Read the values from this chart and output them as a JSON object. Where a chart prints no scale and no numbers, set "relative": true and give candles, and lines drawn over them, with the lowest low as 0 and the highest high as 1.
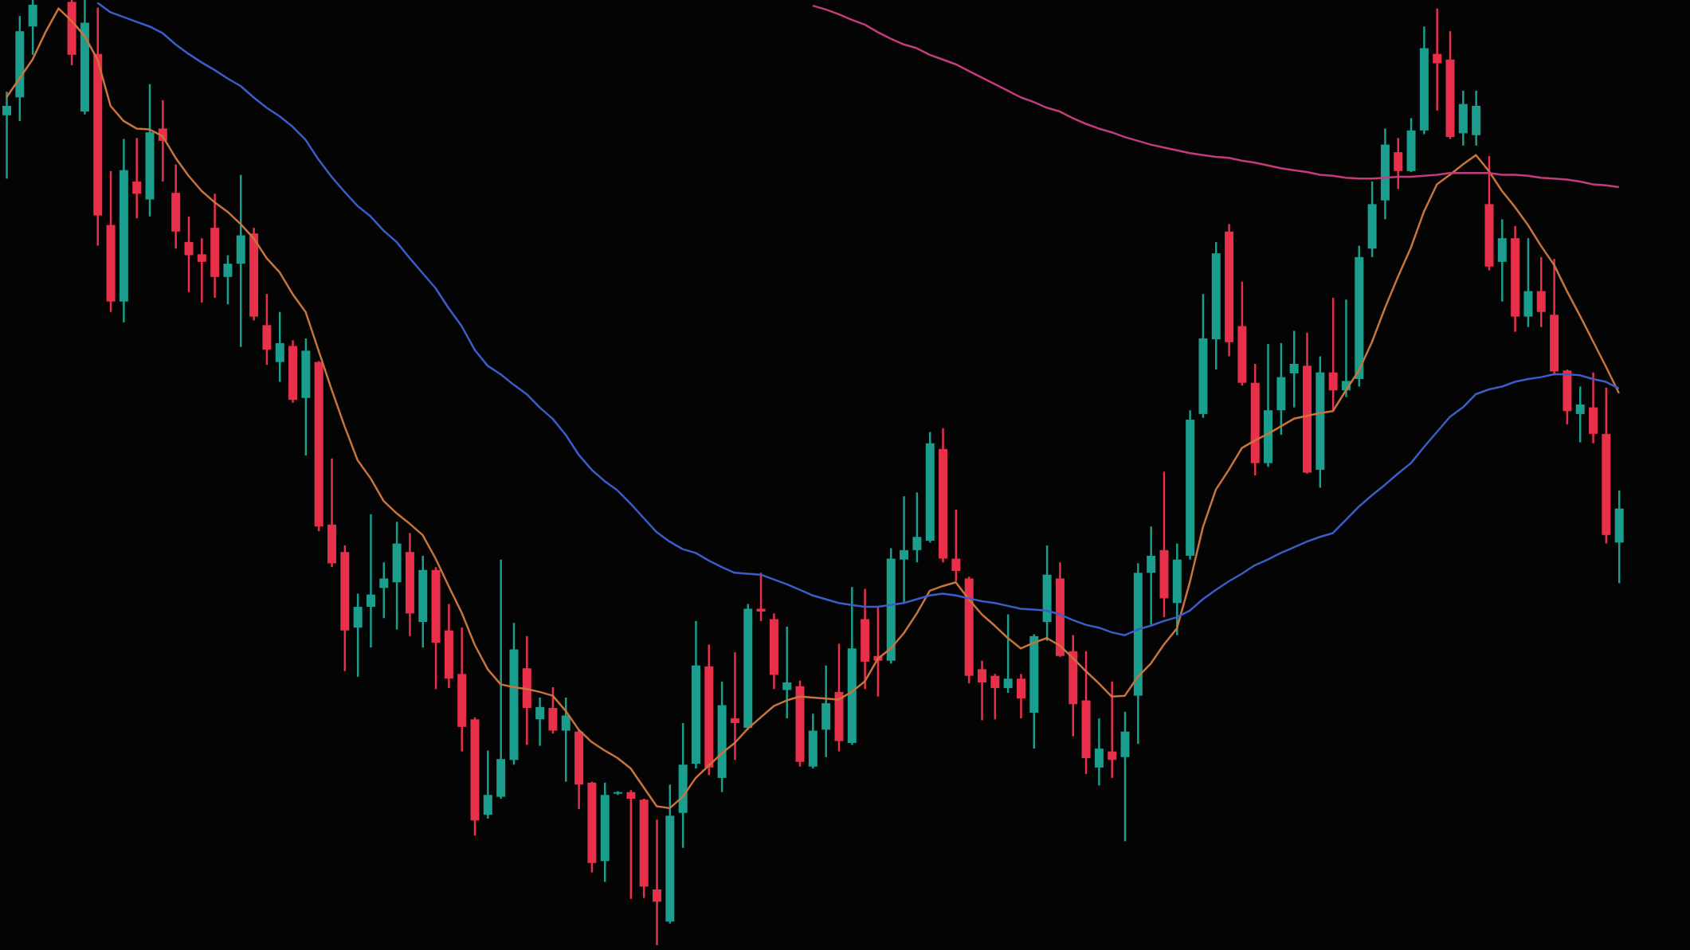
{
  "chart_data": {
    "type": "candlestick",
    "relative": true,
    "categories": [
      null,
      null,
      null,
      null,
      null,
      null,
      null,
      null,
      null,
      null,
      null,
      null,
      null,
      null,
      null,
      null,
      null,
      null,
      null,
      null,
      null,
      null,
      null,
      null,
      null,
      null,
      null,
      null,
      null,
      null,
      null,
      null,
      null,
      null,
      null,
      null,
      null,
      null,
      null,
      null,
      null,
      null,
      null,
      null,
      null,
      null,
      null,
      null,
      null,
      null,
      null,
      null,
      null,
      null,
      null,
      null,
      null,
      null,
      null,
      null,
      null,
      null,
      null,
      null,
      null,
      null,
      null,
      null,
      null,
      null,
      null,
      null,
      null,
      null,
      null,
      null,
      null,
      null,
      null,
      null,
      null,
      null,
      null,
      null,
      null,
      null,
      null,
      null,
      null,
      null,
      null,
      null,
      null,
      null,
      null,
      null,
      null,
      null,
      null,
      null,
      null,
      null,
      null,
      null,
      null,
      null,
      null,
      null,
      null,
      null,
      null,
      null,
      null,
      null,
      null,
      null,
      null,
      null,
      null,
      null,
      null,
      null,
      null,
      null,
      null
    ],
    "ohlc": [
      [
        0.878,
        0.903,
        0.811,
        0.888
      ],
      [
        0.897,
        0.983,
        0.872,
        0.967
      ],
      [
        0.972,
        1,
        0.942,
        0.995
      ],
      null,
      null,
      [
        0.998,
        1,
        0.931,
        0.942
      ],
      [
        0.882,
        1,
        0.879,
        0.976
      ],
      [
        0.943,
        0.992,
        0.74,
        0.772
      ],
      [
        0.762,
        0.819,
        0.67,
        0.681
      ],
      [
        0.681,
        0.853,
        0.659,
        0.82
      ],
      [
        0.808,
        0.854,
        0.769,
        0.795
      ],
      [
        0.789,
        0.911,
        0.771,
        0.86
      ],
      [
        0.864,
        0.894,
        0.808,
        0.851
      ],
      [
        0.796,
        0.826,
        0.737,
        0.755
      ],
      [
        0.744,
        0.771,
        0.691,
        0.73
      ],
      [
        0.731,
        0.748,
        0.68,
        0.723
      ],
      [
        0.759,
        0.795,
        0.685,
        0.707
      ],
      [
        0.707,
        0.73,
        0.678,
        0.721
      ],
      [
        0.721,
        0.815,
        0.633,
        0.751
      ],
      [
        0.753,
        0.759,
        0.661,
        0.665
      ],
      [
        0.656,
        0.689,
        0.614,
        0.63
      ],
      [
        0.617,
        0.67,
        0.596,
        0.637
      ],
      [
        0.634,
        0.64,
        0.574,
        0.577
      ],
      [
        0.579,
        0.642,
        0.518,
        0.629
      ],
      [
        0.617,
        0.618,
        0.438,
        0.443
      ],
      [
        0.445,
        0.515,
        0.4,
        0.404
      ],
      [
        0.416,
        0.423,
        0.29,
        0.333
      ],
      [
        0.336,
        0.372,
        0.284,
        0.358
      ],
      [
        0.358,
        0.456,
        0.315,
        0.371
      ],
      [
        0.378,
        0.405,
        0.346,
        0.388
      ],
      [
        0.384,
        0.448,
        0.334,
        0.425
      ],
      [
        0.416,
        0.436,
        0.327,
        0.351
      ],
      [
        0.342,
        0.412,
        0.315,
        0.397
      ],
      [
        0.397,
        0.4,
        0.271,
        0.32
      ],
      [
        0.333,
        0.361,
        0.272,
        0.282
      ],
      [
        0.287,
        0.336,
        0.205,
        0.231
      ],
      [
        0.239,
        0.241,
        0.116,
        0.132
      ],
      [
        0.138,
        0.206,
        0.134,
        0.159
      ],
      [
        0.157,
        0.408,
        0.155,
        0.197
      ],
      [
        0.196,
        0.341,
        0.191,
        0.313
      ],
      [
        0.293,
        0.327,
        0.212,
        0.251
      ],
      [
        0.239,
        0.262,
        0.211,
        0.252
      ],
      [
        0.251,
        0.273,
        0.224,
        0.227
      ],
      [
        0.227,
        0.262,
        0.173,
        0.243
      ],
      [
        0.226,
        0.228,
        0.144,
        0.17
      ],
      [
        0.172,
        0.173,
        0.077,
        0.087
      ],
      [
        0.089,
        0.172,
        0.067,
        0.159
      ],
      [
        0.161,
        0.163,
        0.159,
        0.162
      ],
      [
        0.162,
        0.164,
        0.049,
        0.155
      ],
      [
        0.154,
        0.155,
        0.05,
        0.062
      ],
      [
        0.059,
        0.133,
        0,
        0.046
      ],
      [
        0.025,
        0.17,
        0.023,
        0.137
      ],
      [
        0.14,
        0.235,
        0.103,
        0.191
      ],
      [
        0.192,
        0.343,
        0.187,
        0.296
      ],
      [
        0.295,
        0.318,
        0.18,
        0.188
      ],
      [
        0.177,
        0.279,
        0.162,
        0.254
      ],
      [
        0.24,
        0.31,
        0.196,
        0.235
      ],
      [
        0.23,
        0.361,
        0.228,
        0.356
      ],
      [
        0.356,
        0.394,
        0.343,
        0.353
      ],
      [
        0.345,
        0.351,
        0.271,
        0.286
      ],
      [
        0.27,
        0.337,
        0.24,
        0.278
      ],
      [
        0.274,
        0.28,
        0.189,
        0.194
      ],
      [
        0.189,
        0.245,
        0.187,
        0.227
      ],
      [
        0.228,
        0.296,
        0.199,
        0.256
      ],
      [
        0.268,
        0.319,
        0.205,
        0.216
      ],
      [
        0.214,
        0.379,
        0.212,
        0.314
      ],
      [
        0.345,
        0.377,
        0.271,
        0.3
      ],
      [
        0.306,
        0.358,
        0.263,
        0.301
      ],
      [
        0.301,
        0.42,
        0.298,
        0.409
      ],
      [
        0.408,
        0.475,
        0.362,
        0.418
      ],
      [
        0.418,
        0.479,
        0.405,
        0.432
      ],
      [
        0.428,
        0.543,
        0.426,
        0.531
      ],
      [
        0.525,
        0.547,
        0.405,
        0.409
      ],
      [
        0.409,
        0.461,
        0.385,
        0.396
      ],
      [
        0.388,
        0.39,
        0.277,
        0.285
      ],
      [
        0.292,
        0.301,
        0.238,
        0.278
      ],
      [
        0.285,
        0.287,
        0.239,
        0.272
      ],
      [
        0.272,
        0.35,
        0.267,
        0.282
      ],
      [
        0.282,
        0.287,
        0.24,
        0.261
      ],
      [
        0.246,
        0.329,
        0.208,
        0.327
      ],
      [
        0.342,
        0.423,
        0.322,
        0.392
      ],
      [
        0.388,
        0.405,
        0.305,
        0.306
      ],
      [
        0.311,
        0.328,
        0.221,
        0.255
      ],
      [
        0.259,
        0.311,
        0.181,
        0.198
      ],
      [
        0.188,
        0.24,
        0.169,
        0.208
      ],
      [
        0.205,
        0.279,
        0.177,
        0.196
      ],
      [
        0.199,
        0.247,
        0.11,
        0.226
      ],
      [
        0.264,
        0.404,
        0.213,
        0.394
      ],
      [
        0.394,
        0.443,
        0.339,
        0.412
      ],
      [
        0.418,
        0.501,
        0.347,
        0.367
      ],
      [
        0.362,
        0.425,
        0.328,
        0.408
      ],
      [
        0.412,
        0.566,
        0.408,
        0.556
      ],
      [
        0.562,
        0.689,
        0.558,
        0.642
      ],
      [
        0.641,
        0.744,
        0.609,
        0.732
      ],
      [
        0.755,
        0.763,
        0.623,
        0.638
      ],
      [
        0.655,
        0.702,
        0.592,
        0.595
      ],
      [
        0.595,
        0.615,
        0.497,
        0.51
      ],
      [
        0.51,
        0.636,
        0.506,
        0.566
      ],
      [
        0.566,
        0.637,
        0.54,
        0.601
      ],
      [
        0.605,
        0.65,
        0.569,
        0.615
      ],
      [
        0.613,
        0.648,
        0.499,
        0.5
      ],
      [
        0.503,
        0.623,
        0.484,
        0.606
      ],
      [
        0.606,
        0.685,
        0.566,
        0.587
      ],
      [
        0.587,
        0.683,
        0.58,
        0.597
      ],
      [
        0.599,
        0.74,
        0.591,
        0.728
      ],
      [
        0.737,
        0.808,
        0.728,
        0.784
      ],
      [
        0.788,
        0.864,
        0.768,
        0.847
      ],
      [
        0.839,
        0.854,
        0.8,
        0.819
      ],
      [
        0.819,
        0.875,
        0.818,
        0.862
      ],
      [
        0.862,
        0.972,
        0.858,
        0.949
      ],
      [
        0.943,
        0.991,
        0.883,
        0.933
      ],
      [
        0.937,
        0.967,
        0.853,
        0.855
      ],
      [
        0.859,
        0.904,
        0.846,
        0.89
      ],
      [
        0.857,
        0.904,
        0.846,
        0.888
      ],
      [
        0.784,
        0.835,
        0.714,
        0.718
      ],
      [
        0.723,
        0.768,
        0.681,
        0.748
      ],
      [
        0.748,
        0.761,
        0.649,
        0.665
      ],
      [
        0.665,
        0.748,
        0.654,
        0.692
      ],
      [
        0.692,
        0.728,
        0.654,
        0.67
      ],
      [
        0.667,
        0.726,
        0.603,
        0.607
      ],
      [
        0.608,
        0.609,
        0.551,
        0.565
      ],
      [
        0.562,
        0.591,
        0.532,
        0.572
      ],
      [
        0.569,
        0.606,
        0.531,
        0.541
      ],
      [
        0.541,
        0.59,
        0.425,
        0.434
      ],
      [
        0.426,
        0.481,
        0.383,
        0.462
      ]
    ],
    "colors": [
      "#1b9e8e",
      "#1b9e8e",
      "#1b9e8e",
      null,
      null,
      "#e8304a",
      "#1b9e8e",
      "#e8304a",
      "#e8304a",
      "#1b9e8e",
      "#e8304a",
      "#1b9e8e",
      "#e8304a",
      "#e8304a",
      "#e8304a",
      "#e8304a",
      "#e8304a",
      "#1b9e8e",
      "#1b9e8e",
      "#e8304a",
      "#e8304a",
      "#1b9e8e",
      "#e8304a",
      "#1b9e8e",
      "#e8304a",
      "#e8304a",
      "#e8304a",
      "#1b9e8e",
      "#1b9e8e",
      "#1b9e8e",
      "#1b9e8e",
      "#e8304a",
      "#1b9e8e",
      "#e8304a",
      "#e8304a",
      "#e8304a",
      "#e8304a",
      "#1b9e8e",
      "#1b9e8e",
      "#1b9e8e",
      "#e8304a",
      "#1b9e8e",
      "#e8304a",
      "#1b9e8e",
      "#e8304a",
      "#e8304a",
      "#1b9e8e",
      "#1b9e8e",
      "#e8304a",
      "#e8304a",
      "#e8304a",
      "#1b9e8e",
      "#1b9e8e",
      "#1b9e8e",
      "#e8304a",
      "#1b9e8e",
      "#e8304a",
      "#1b9e8e",
      "#e8304a",
      "#e8304a",
      "#1b9e8e",
      "#e8304a",
      "#1b9e8e",
      "#1b9e8e",
      "#e8304a",
      "#1b9e8e",
      "#e8304a",
      "#e8304a",
      "#1b9e8e",
      "#1b9e8e",
      "#1b9e8e",
      "#1b9e8e",
      "#e8304a",
      "#e8304a",
      "#e8304a",
      "#e8304a",
      "#e8304a",
      "#1b9e8e",
      "#e8304a",
      "#1b9e8e",
      "#1b9e8e",
      "#e8304a",
      "#e8304a",
      "#e8304a",
      "#1b9e8e",
      "#e8304a",
      "#1b9e8e",
      "#1b9e8e",
      "#1b9e8e",
      "#e8304a",
      "#1b9e8e",
      "#1b9e8e",
      "#1b9e8e",
      "#1b9e8e",
      "#e8304a",
      "#e8304a",
      "#e8304a",
      "#1b9e8e",
      "#1b9e8e",
      "#1b9e8e",
      "#e8304a",
      "#1b9e8e",
      "#e8304a",
      "#1b9e8e",
      "#1b9e8e",
      "#1b9e8e",
      "#1b9e8e",
      "#e8304a",
      "#1b9e8e",
      "#1b9e8e",
      "#e8304a",
      "#e8304a",
      "#1b9e8e",
      "#1b9e8e",
      "#e8304a",
      "#1b9e8e",
      "#e8304a",
      "#1b9e8e",
      "#e8304a",
      "#e8304a",
      "#e8304a",
      "#1b9e8e",
      "#e8304a",
      "#e8304a",
      "#1b9e8e"
    ],
    "series": [
      {
        "type": "line",
        "color": "#c8743c",
        "values": [
          0.897,
          0.917,
          0.937,
          0.966,
          0.991,
          0.978,
          0.962,
          0.937,
          0.888,
          0.872,
          0.864,
          0.863,
          0.856,
          0.833,
          0.814,
          0.798,
          0.786,
          0.776,
          0.763,
          0.748,
          0.727,
          0.712,
          0.689,
          0.67,
          0.629,
          0.588,
          0.549,
          0.513,
          0.494,
          0.47,
          0.457,
          0.446,
          0.434,
          0.409,
          0.38,
          0.352,
          0.318,
          0.292,
          0.276,
          0.273,
          0.271,
          0.268,
          0.264,
          0.248,
          0.228,
          0.215,
          0.206,
          0.198,
          0.187,
          0.167,
          0.147,
          0.145,
          0.157,
          0.177,
          0.19,
          0.203,
          0.214,
          0.229,
          0.241,
          0.253,
          0.259,
          0.263,
          0.262,
          0.261,
          0.26,
          0.268,
          0.279,
          0.303,
          0.314,
          0.33,
          0.351,
          0.375,
          0.38,
          0.384,
          0.366,
          0.35,
          0.338,
          0.325,
          0.314,
          0.32,
          0.325,
          0.317,
          0.304,
          0.29,
          0.277,
          0.263,
          0.264,
          0.284,
          0.298,
          0.318,
          0.335,
          0.384,
          0.442,
          0.482,
          0.503,
          0.526,
          0.534,
          0.541,
          0.549,
          0.557,
          0.56,
          0.563,
          0.565,
          0.587,
          0.608,
          0.638,
          0.674,
          0.707,
          0.738,
          0.776,
          0.805,
          0.815,
          0.826,
          0.836,
          0.819,
          0.798,
          0.781,
          0.762,
          0.74,
          0.72,
          0.692,
          0.666,
          0.639,
          0.612,
          0.584
        ]
      },
      {
        "type": "line",
        "color": "#3c5cc8",
        "values": [
          null,
          null,
          null,
          null,
          null,
          null,
          null,
          0.997,
          0.987,
          0.982,
          0.977,
          0.972,
          0.965,
          0.953,
          0.943,
          0.934,
          0.926,
          0.917,
          0.909,
          0.897,
          0.886,
          0.877,
          0.866,
          0.852,
          0.831,
          0.813,
          0.797,
          0.782,
          0.771,
          0.756,
          0.744,
          0.727,
          0.711,
          0.695,
          0.674,
          0.655,
          0.63,
          0.613,
          0.604,
          0.593,
          0.583,
          0.569,
          0.557,
          0.54,
          0.519,
          0.503,
          0.491,
          0.481,
          0.467,
          0.452,
          0.437,
          0.427,
          0.419,
          0.415,
          0.407,
          0.4,
          0.394,
          0.393,
          0.392,
          0.387,
          0.382,
          0.376,
          0.37,
          0.366,
          0.362,
          0.36,
          0.358,
          0.358,
          0.36,
          0.362,
          0.366,
          0.37,
          0.372,
          0.37,
          0.367,
          0.364,
          0.362,
          0.359,
          0.356,
          0.355,
          0.354,
          0.35,
          0.344,
          0.339,
          0.336,
          0.331,
          0.328,
          0.334,
          0.338,
          0.343,
          0.347,
          0.354,
          0.366,
          0.376,
          0.385,
          0.393,
          0.402,
          0.408,
          0.415,
          0.421,
          0.427,
          0.432,
          0.436,
          0.45,
          0.464,
          0.476,
          0.487,
          0.499,
          0.51,
          0.527,
          0.543,
          0.559,
          0.569,
          0.583,
          0.588,
          0.591,
          0.596,
          0.599,
          0.601,
          0.604,
          0.604,
          0.603,
          0.599,
          0.596,
          0.589
        ]
      },
      {
        "type": "line",
        "color": "#c43c7c",
        "values": [
          null,
          null,
          null,
          null,
          null,
          null,
          null,
          null,
          null,
          null,
          null,
          null,
          null,
          null,
          null,
          null,
          null,
          null,
          null,
          null,
          null,
          null,
          null,
          null,
          null,
          null,
          null,
          null,
          null,
          null,
          null,
          null,
          null,
          null,
          null,
          null,
          null,
          null,
          null,
          null,
          null,
          null,
          null,
          null,
          null,
          null,
          null,
          null,
          null,
          null,
          null,
          null,
          null,
          null,
          null,
          null,
          null,
          null,
          null,
          null,
          null,
          null,
          0.994,
          0.99,
          0.985,
          0.979,
          0.974,
          0.966,
          0.959,
          0.953,
          0.949,
          0.942,
          0.937,
          0.932,
          0.925,
          0.918,
          0.911,
          0.904,
          0.897,
          0.892,
          0.886,
          0.882,
          0.875,
          0.869,
          0.864,
          0.86,
          0.855,
          0.851,
          0.847,
          0.844,
          0.841,
          0.838,
          0.836,
          0.834,
          0.833,
          0.83,
          0.828,
          0.825,
          0.822,
          0.82,
          0.818,
          0.815,
          0.814,
          0.812,
          0.811,
          0.811,
          0.812,
          0.813,
          0.813,
          0.814,
          0.815,
          0.817,
          0.817,
          0.817,
          0.817,
          0.815,
          0.815,
          0.814,
          0.812,
          0.811,
          0.81,
          0.808,
          0.805,
          0.804,
          0.802
        ]
      }
    ]
  }
}
